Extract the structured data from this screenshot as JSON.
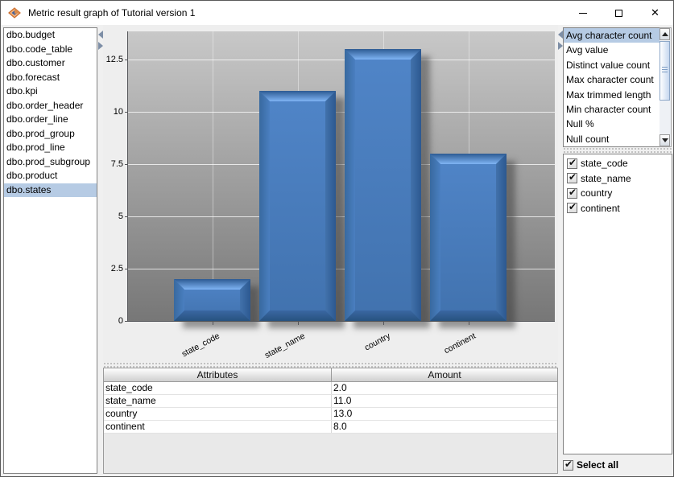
{
  "window": {
    "title": "Metric result graph of Tutorial version 1"
  },
  "icons": {
    "close_glyph": "✕"
  },
  "tables_list": {
    "items": [
      "dbo.budget",
      "dbo.code_table",
      "dbo.customer",
      "dbo.forecast",
      "dbo.kpi",
      "dbo.order_header",
      "dbo.order_line",
      "dbo.prod_group",
      "dbo.prod_line",
      "dbo.prod_subgroup",
      "dbo.product",
      "dbo.states"
    ],
    "selected": "dbo.states"
  },
  "metrics_list": {
    "items": [
      "Avg character count",
      "Avg value",
      "Distinct value count",
      "Max character count",
      "Max trimmed length",
      "Min character count",
      "Null %",
      "Null count"
    ],
    "selected": "Avg character count"
  },
  "columns_panel": {
    "items": [
      {
        "label": "state_code",
        "checked": true
      },
      {
        "label": "state_name",
        "checked": true
      },
      {
        "label": "country",
        "checked": true
      },
      {
        "label": "continent",
        "checked": true
      }
    ]
  },
  "select_all": {
    "label": "Select all",
    "checked": true
  },
  "chart_data": {
    "type": "bar",
    "categories": [
      "state_code",
      "state_name",
      "country",
      "continent"
    ],
    "values": [
      2,
      11,
      13,
      8
    ],
    "title": "",
    "xlabel": "",
    "ylabel": "",
    "ylim": [
      0,
      13.8
    ],
    "yticks": [
      0,
      2.5,
      5,
      7.5,
      10,
      12.5
    ],
    "ytick_labels": [
      "0",
      "2.5",
      "5",
      "7.5",
      "10",
      "12.5"
    ],
    "grid": true,
    "legend": "none",
    "bar_color": "#4b80c0",
    "plot_bg_top": "#c8c8c8",
    "plot_bg_bottom": "#777777"
  },
  "result_table": {
    "headers": [
      "Attributes",
      "Amount"
    ],
    "rows": [
      [
        "state_code",
        "2.0"
      ],
      [
        "state_name",
        "11.0"
      ],
      [
        "country",
        "13.0"
      ],
      [
        "continent",
        "8.0"
      ]
    ]
  }
}
